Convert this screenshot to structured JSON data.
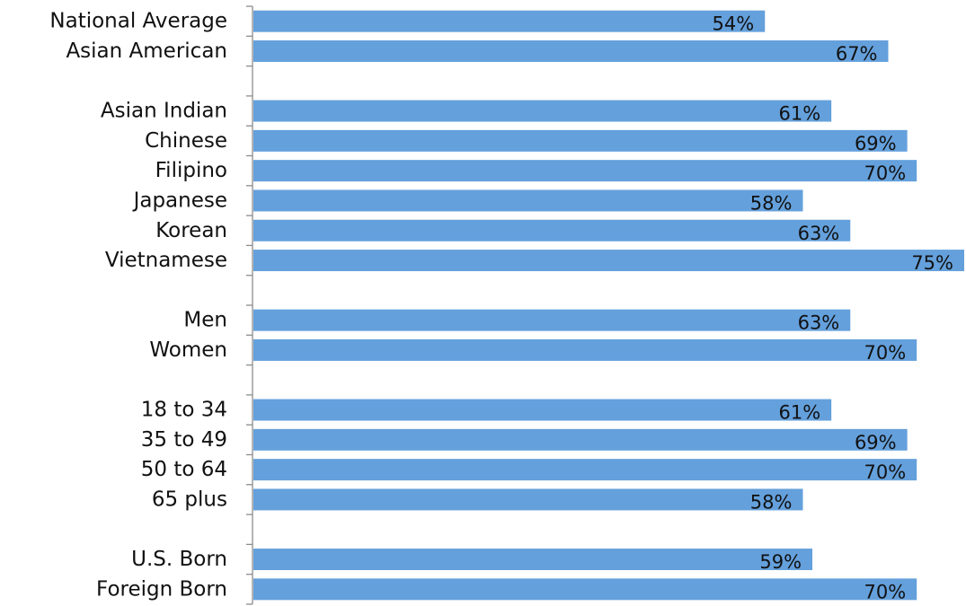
{
  "chart_data": {
    "type": "bar",
    "orientation": "horizontal",
    "categories": [
      "National Average",
      "Asian American",
      "",
      "Asian Indian",
      "Chinese",
      "Filipino",
      "Japanese",
      "Korean",
      "Vietnamese",
      "",
      "Men",
      "Women",
      "",
      "18 to 34",
      "35 to 49",
      "50 to 64",
      "65 plus",
      "",
      "U.S. Born",
      "Foreign Born"
    ],
    "values": [
      54,
      67,
      null,
      61,
      69,
      70,
      58,
      63,
      75,
      null,
      63,
      70,
      null,
      61,
      69,
      70,
      58,
      null,
      59,
      70
    ],
    "data_labels": [
      "54%",
      "67%",
      "",
      "61%",
      "69%",
      "70%",
      "58%",
      "63%",
      "75%",
      "",
      "63%",
      "70%",
      "",
      "61%",
      "69%",
      "70%",
      "58%",
      "",
      "59%",
      "70%"
    ],
    "xlim": [
      0,
      75
    ],
    "grid": false,
    "legend": "none",
    "bar_color": "#64a0dc",
    "axis_color": "#8c8c8c"
  }
}
